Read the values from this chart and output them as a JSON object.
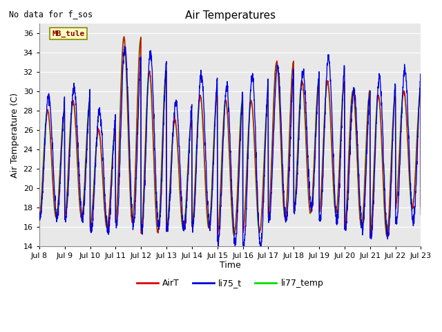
{
  "title": "Air Temperatures",
  "xlabel": "Time",
  "ylabel": "Air Temperature (C)",
  "annotation": "No data for f_sos",
  "location_label": "MB_tule",
  "ylim": [
    14,
    37
  ],
  "yticks": [
    14,
    16,
    18,
    20,
    22,
    24,
    26,
    28,
    30,
    32,
    34,
    36
  ],
  "x_labels": [
    "Jul 8",
    "Jul 9",
    "Jul 10",
    "Jul 11",
    "Jul 12",
    "Jul 13",
    "Jul 14",
    "Jul 15",
    "Jul 16",
    "Jul 17",
    "Jul 18",
    "Jul 19",
    "Jul 20",
    "Jul 21",
    "Jul 22",
    "Jul 23"
  ],
  "line_colors": {
    "AirT": "#dd0000",
    "li75_t": "#0000dd",
    "li77_temp": "#00dd00"
  },
  "n_days": 15,
  "points_per_day": 144,
  "figwidth": 6.4,
  "figheight": 4.8,
  "dpi": 100,
  "plot_bg": "#e8e8e8",
  "grid_color": "#ffffff",
  "title_fontsize": 11,
  "axis_label_fontsize": 9,
  "tick_fontsize": 8
}
